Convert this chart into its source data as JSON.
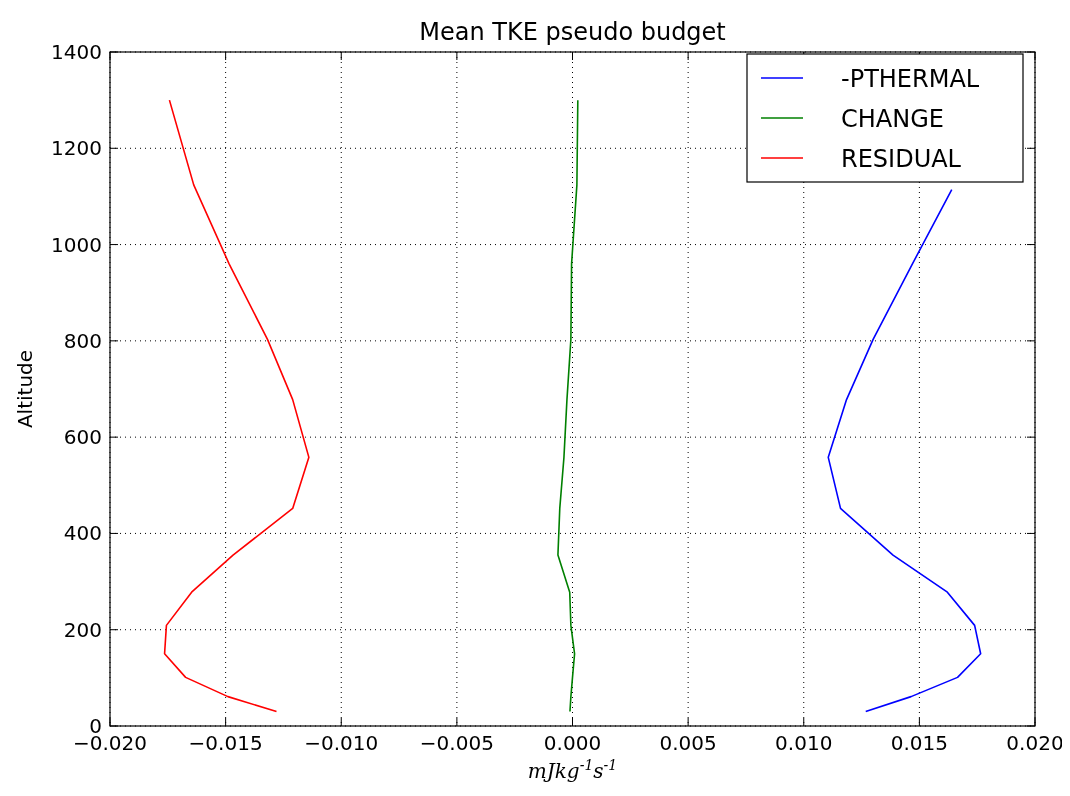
{
  "chart_data": {
    "type": "line",
    "title": "Mean TKE pseudo budget",
    "xlabel": "mJkg$^{-1}$s$^{-1}$",
    "ylabel": "Altitude",
    "xlim": [
      -0.02,
      0.02
    ],
    "ylim": [
      0,
      1400
    ],
    "xticks": [
      {
        "value": -0.02,
        "label": "−0.020"
      },
      {
        "value": -0.015,
        "label": "−0.015"
      },
      {
        "value": -0.01,
        "label": "−0.010"
      },
      {
        "value": -0.005,
        "label": "−0.005"
      },
      {
        "value": 0,
        "label": "0.000"
      },
      {
        "value": 0.005,
        "label": "0.005"
      },
      {
        "value": 0.01,
        "label": "0.010"
      },
      {
        "value": 0.015,
        "label": "0.015"
      },
      {
        "value": 0.02,
        "label": "0.020"
      }
    ],
    "yticks": [
      0,
      200,
      400,
      600,
      800,
      1000,
      1200,
      1400
    ],
    "grid": true,
    "legend": "top right",
    "series": [
      {
        "name": "-PTHERMAL",
        "color": "#0000ff",
        "x": [
          0.0164,
          0.0147,
          0.013,
          0.01185,
          0.01106,
          0.01159,
          0.01386,
          0.01621,
          0.01739,
          0.01765,
          0.01665,
          0.01464,
          0.01268
        ],
        "values": [
          1114,
          960,
          803,
          678,
          558,
          452,
          355,
          278,
          209,
          150,
          101,
          61,
          30
        ]
      },
      {
        "name": "CHANGE",
        "color": "#008000",
        "x": [
          0.00023,
          0.00019,
          -4e-05,
          -7e-05,
          -0.00024,
          -0.00037,
          -0.00055,
          -0.00063,
          -0.00012,
          -7e-05,
          9e-05,
          0,
          -7e-05,
          -0.00011
        ],
        "values": [
          1300,
          1124,
          960,
          803,
          678,
          558,
          452,
          355,
          278,
          209,
          150,
          101,
          61,
          30
        ]
      },
      {
        "name": "RESIDUAL",
        "color": "#ff0000",
        "x": [
          -0.01743,
          -0.01638,
          -0.01485,
          -0.01319,
          -0.0121,
          -0.0114,
          -0.0121,
          -0.01468,
          -0.01647,
          -0.01756,
          -0.01764,
          -0.01673,
          -0.0149,
          -0.0128
        ],
        "values": [
          1300,
          1124,
          960,
          803,
          678,
          558,
          452,
          355,
          278,
          209,
          150,
          101,
          61,
          30
        ]
      }
    ]
  }
}
